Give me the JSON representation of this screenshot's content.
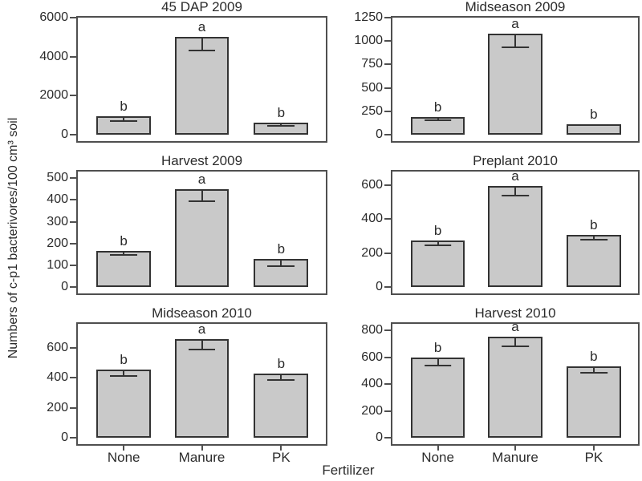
{
  "figure": {
    "ylabel": "Numbers of c-p1 bacterivores/100 cm³ soil",
    "xlabel": "Fertilizer"
  },
  "chart_data": {
    "type": "bar",
    "layout": "2 columns x 3 rows of panels, shared y-axis label, shared x-axis label",
    "grid": false,
    "categories": [
      "None",
      "Manure",
      "PK"
    ],
    "xlabel": "Fertilizer",
    "ylabel": "Numbers of c-p1 bacterivores/100 cm³ soil",
    "bar_fill_color": "#c9c9c9",
    "bar_border_color": "#333333",
    "axis_color": "#4f4f4f",
    "error_bar_style": "whisker drawn downward from bar top with horizontal cap",
    "panels": [
      {
        "title": "45 DAP 2009",
        "yticks": [
          0,
          2000,
          4000,
          6000
        ],
        "ymax": 6000,
        "values": [
          950,
          5000,
          620
        ],
        "error_caps": [
          710,
          4300,
          470
        ],
        "letters": [
          "b",
          "a",
          "b"
        ]
      },
      {
        "title": "Midseason 2009",
        "yticks": [
          0,
          250,
          500,
          750,
          1000,
          1250
        ],
        "ymax": 1250,
        "values": [
          185,
          1075,
          115
        ],
        "error_caps": [
          150,
          935,
          100
        ],
        "letters": [
          "b",
          "a",
          "b"
        ]
      },
      {
        "title": "Harvest 2009",
        "yticks": [
          0,
          100,
          200,
          300,
          400,
          500
        ],
        "ymax": 530,
        "values": [
          165,
          450,
          130
        ],
        "error_caps": [
          147,
          395,
          97
        ],
        "letters": [
          "b",
          "a",
          "b"
        ]
      },
      {
        "title": "Preplant 2010",
        "yticks": [
          0,
          200,
          400,
          600
        ],
        "ymax": 680,
        "values": [
          273,
          594,
          308
        ],
        "error_caps": [
          245,
          538,
          277
        ],
        "letters": [
          "b",
          "a",
          "b"
        ]
      },
      {
        "title": "Midseason 2010",
        "yticks": [
          0,
          200,
          400,
          600
        ],
        "ymax": 760,
        "values": [
          455,
          660,
          427
        ],
        "error_caps": [
          410,
          590,
          383
        ],
        "letters": [
          "b",
          "a",
          "b"
        ]
      },
      {
        "title": "Harvest 2010",
        "yticks": [
          0,
          200,
          400,
          600,
          800
        ],
        "ymax": 850,
        "values": [
          600,
          755,
          535
        ],
        "error_caps": [
          536,
          682,
          483
        ],
        "letters": [
          "b",
          "a",
          "b"
        ]
      }
    ]
  }
}
